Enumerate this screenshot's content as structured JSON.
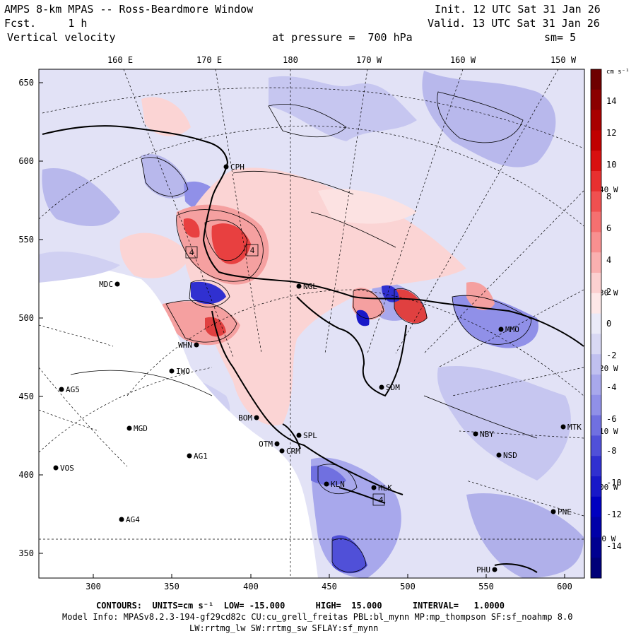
{
  "header": {
    "title": "AMPS 8-km MPAS -- Ross-Beardmore Window",
    "fcst_label": "Fcst.",
    "fcst_value": "1 h",
    "variable": "Vertical velocity",
    "pressure_label": "at pressure =",
    "pressure_value": "700 hPa",
    "init_label": "Init.",
    "init_value": "12 UTC Sat 31 Jan 26",
    "valid_label": "Valid.",
    "valid_value": "13 UTC Sat 31 Jan 26",
    "smoothing": "sm= 5"
  },
  "axes": {
    "x_ticks": [
      "300",
      "350",
      "400",
      "450",
      "500",
      "550",
      "600"
    ],
    "y_ticks": [
      "650",
      "600",
      "550",
      "500",
      "450",
      "400",
      "350"
    ],
    "lon_labels_top": [
      "160 E",
      "170 E",
      "180",
      "170 W",
      "160 W",
      "150 W"
    ],
    "lon_labels_right": [
      "140 W",
      "130 W",
      "120 W",
      "110 W",
      "100 W",
      "90 W"
    ]
  },
  "colorbar": {
    "unit": "cm s⁻¹",
    "labels": [
      "14",
      "12",
      "10",
      "8",
      "6",
      "4",
      "2",
      "0",
      "-2",
      "-4",
      "-6",
      "-8",
      "-10",
      "-12",
      "-14"
    ],
    "colors": [
      "#6e0000",
      "#8b0000",
      "#a80000",
      "#c00000",
      "#d81010",
      "#e83030",
      "#f05050",
      "#f57070",
      "#f89090",
      "#fab0b0",
      "#fcd0d0",
      "#fee8e8",
      "#eaeaf8",
      "#d8d8f4",
      "#c0c0f0",
      "#a8a8ec",
      "#9090e8",
      "#7070e0",
      "#5050d8",
      "#3030d0",
      "#1818c8",
      "#0000c0",
      "#0000a8",
      "#000090",
      "#000078"
    ]
  },
  "stations": [
    {
      "code": "CPH"
    },
    {
      "code": "MDC"
    },
    {
      "code": "NGL"
    },
    {
      "code": "WHN"
    },
    {
      "code": "IWO"
    },
    {
      "code": "AG5"
    },
    {
      "code": "MGD"
    },
    {
      "code": "BOM"
    },
    {
      "code": "SPL"
    },
    {
      "code": "OTM"
    },
    {
      "code": "CRM"
    },
    {
      "code": "AG1"
    },
    {
      "code": "VOS"
    },
    {
      "code": "KLN"
    },
    {
      "code": "HLK"
    },
    {
      "code": "AG4"
    },
    {
      "code": "SDM"
    },
    {
      "code": "NBY"
    },
    {
      "code": "NSD"
    },
    {
      "code": "MTK"
    },
    {
      "code": "PNE"
    },
    {
      "code": "PHU"
    },
    {
      "code": "MMO"
    }
  ],
  "contour_labels": [
    "4",
    "4",
    "-4"
  ],
  "footer": {
    "contours_line": "CONTOURS:  UNITS=cm s⁻¹  LOW= -15.000      HIGH=  15.000      INTERVAL=   1.0000",
    "model_info": "Model Info: MPASv8.2.3-194-gf29cd82c CU:cu_grell_freitas PBL:bl_mynn MP:mp_thompson SF:sf_noahmp 8.0",
    "model_info2": "LW:rrtmg_lw SW:rrtmg_sw SFLAY:sf_mynn"
  }
}
